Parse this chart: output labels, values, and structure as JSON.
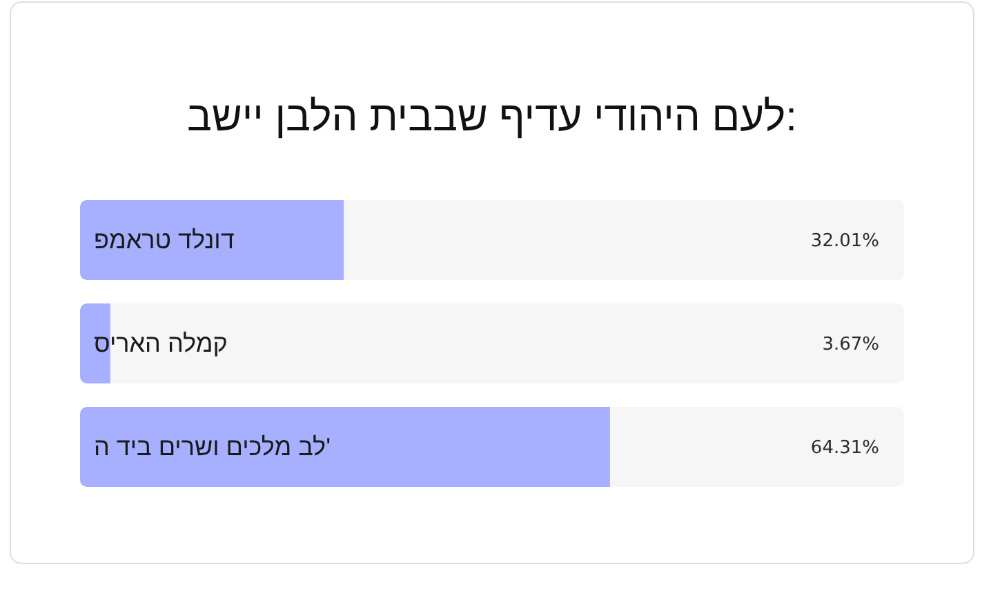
{
  "chart_data": {
    "type": "bar",
    "orientation": "horizontal",
    "title": "לעם היהודי עדיף שבבית הלבן יישב:",
    "categories": [
      "דונלד טראמפ",
      "קמלה האריס",
      "לב מלכים ושרים ביד ה'"
    ],
    "values": [
      32.01,
      3.67,
      64.31
    ],
    "color": "#a6b0fe",
    "xlim": [
      0,
      100
    ],
    "value_labels": [
      "32.01%",
      "3.67%",
      "64.31%"
    ],
    "tick_labels": "y"
  }
}
